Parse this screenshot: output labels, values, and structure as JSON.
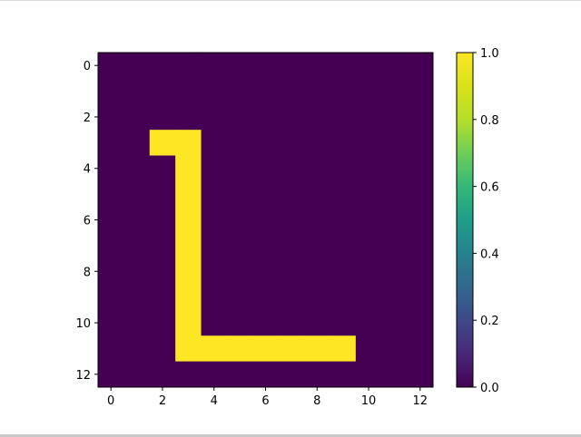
{
  "chart_data": {
    "type": "heatmap",
    "title": "",
    "xlabel": "",
    "ylabel": "",
    "rows": 13,
    "cols": 13,
    "xlim": [
      -0.5,
      12.5
    ],
    "ylim": [
      12.5,
      -0.5
    ],
    "x_ticks": [
      "0",
      "2",
      "4",
      "6",
      "8",
      "10",
      "12"
    ],
    "y_ticks": [
      "0",
      "2",
      "4",
      "6",
      "8",
      "10",
      "12"
    ],
    "colormap": "viridis",
    "vmin": 0.0,
    "vmax": 1.0,
    "colorbar_ticks": [
      "0.0",
      "0.2",
      "0.4",
      "0.6",
      "0.8",
      "1.0"
    ],
    "grid": false,
    "values": [
      [
        0,
        0,
        0,
        0,
        0,
        0,
        0,
        0,
        0,
        0,
        0,
        0,
        0
      ],
      [
        0,
        0,
        0,
        0,
        0,
        0,
        0,
        0,
        0,
        0,
        0,
        0,
        0
      ],
      [
        0,
        0,
        0,
        0,
        0,
        0,
        0,
        0,
        0,
        0,
        0,
        0,
        0
      ],
      [
        0,
        0,
        1,
        1,
        0,
        0,
        0,
        0,
        0,
        0,
        0,
        0,
        0
      ],
      [
        0,
        0,
        0,
        1,
        0,
        0,
        0,
        0,
        0,
        0,
        0,
        0,
        0
      ],
      [
        0,
        0,
        0,
        1,
        0,
        0,
        0,
        0,
        0,
        0,
        0,
        0,
        0
      ],
      [
        0,
        0,
        0,
        1,
        0,
        0,
        0,
        0,
        0,
        0,
        0,
        0,
        0
      ],
      [
        0,
        0,
        0,
        1,
        0,
        0,
        0,
        0,
        0,
        0,
        0,
        0,
        0
      ],
      [
        0,
        0,
        0,
        1,
        0,
        0,
        0,
        0,
        0,
        0,
        0,
        0,
        0
      ],
      [
        0,
        0,
        0,
        1,
        0,
        0,
        0,
        0,
        0,
        0,
        0,
        0,
        0
      ],
      [
        0,
        0,
        0,
        1,
        0,
        0,
        0,
        0,
        0,
        0,
        0,
        0,
        0
      ],
      [
        0,
        0,
        0,
        1,
        1,
        1,
        1,
        1,
        1,
        1,
        0,
        0,
        0
      ],
      [
        0,
        0,
        0,
        0,
        0,
        0,
        0,
        0,
        0,
        0,
        0,
        0,
        0
      ]
    ]
  },
  "colors": {
    "low": "#440154",
    "high": "#fde725"
  }
}
